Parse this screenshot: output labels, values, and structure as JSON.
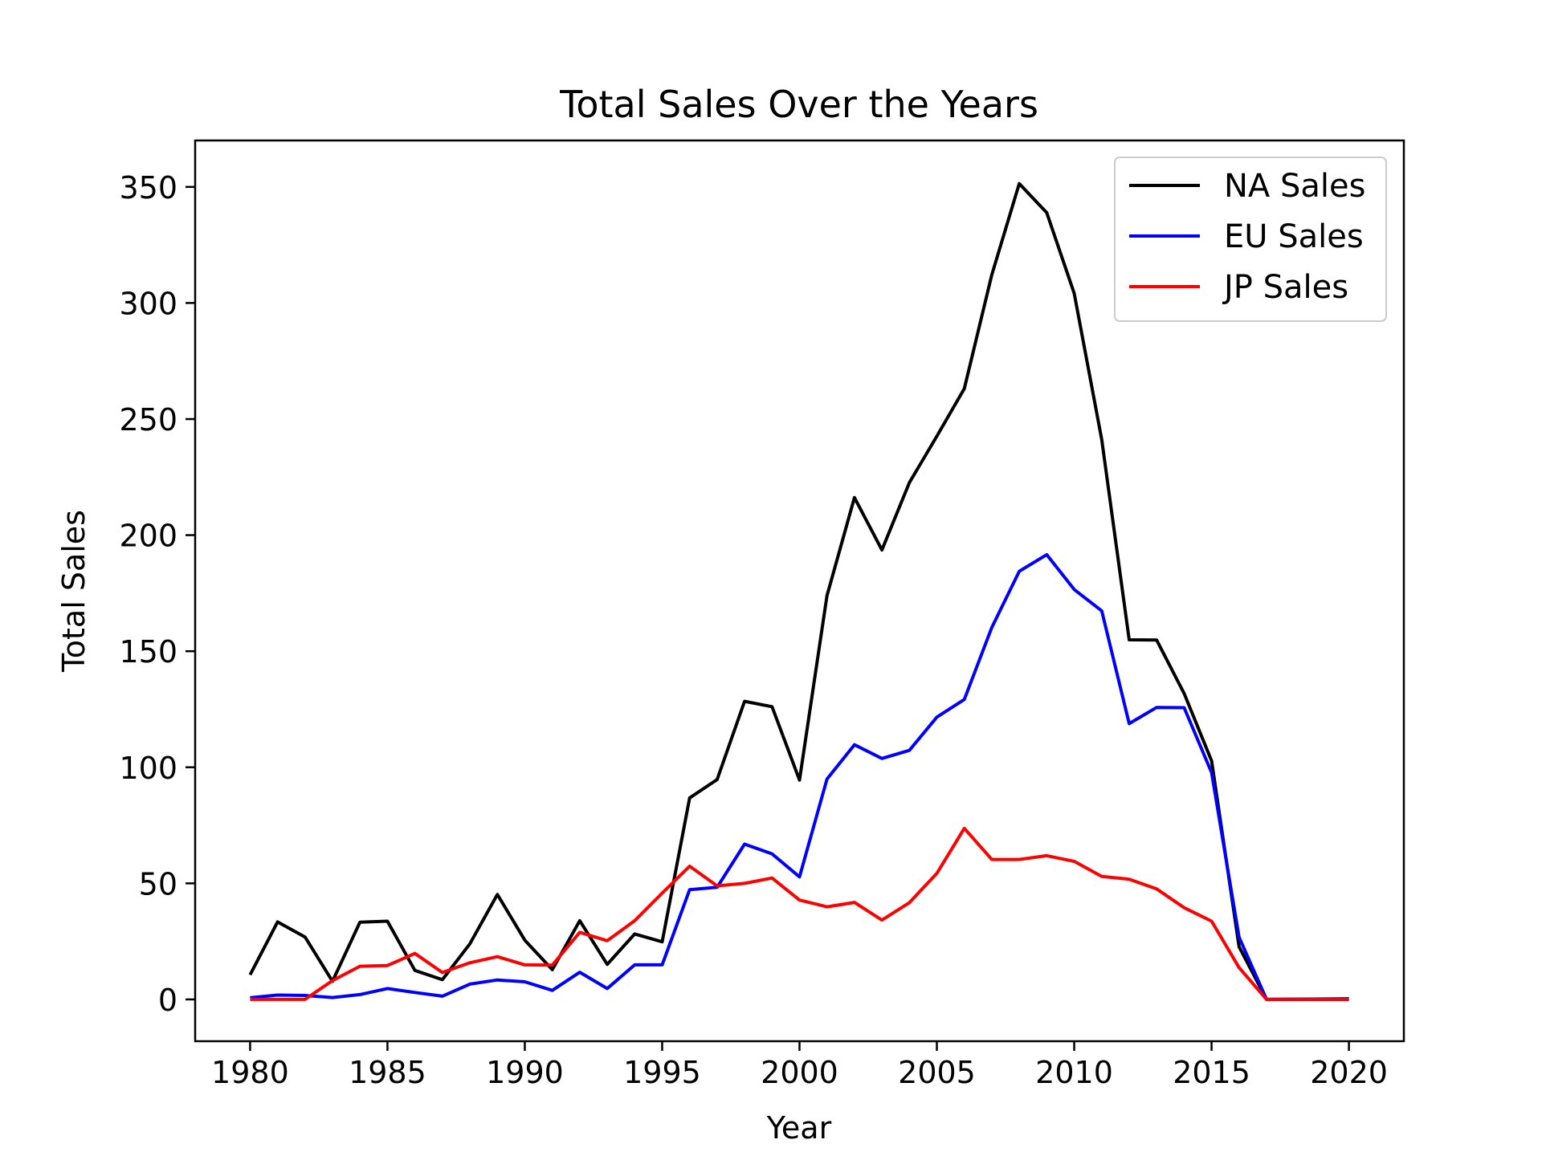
{
  "chart_data": {
    "type": "line",
    "title": "Total Sales Over the Years",
    "xlabel": "Year",
    "ylabel": "Total Sales",
    "xlim": [
      1978,
      2022
    ],
    "ylim": [
      -18,
      370
    ],
    "xticks": [
      "1980",
      "1985",
      "1990",
      "1995",
      "2000",
      "2005",
      "2010",
      "2015",
      "2020"
    ],
    "yticks": [
      "0",
      "50",
      "100",
      "150",
      "200",
      "250",
      "300",
      "350"
    ],
    "grid": false,
    "legend": "top-right",
    "x": [
      1980,
      1981,
      1982,
      1983,
      1984,
      1985,
      1986,
      1987,
      1988,
      1989,
      1990,
      1991,
      1992,
      1993,
      1994,
      1995,
      1996,
      1997,
      1998,
      1999,
      2000,
      2001,
      2002,
      2003,
      2004,
      2005,
      2006,
      2007,
      2008,
      2009,
      2010,
      2011,
      2012,
      2013,
      2014,
      2015,
      2016,
      2017,
      2020
    ],
    "series": [
      {
        "name": "NA Sales",
        "color": "#000000",
        "values": [
          10.6,
          33.4,
          26.9,
          7.8,
          33.3,
          33.7,
          12.5,
          8.5,
          23.9,
          45.2,
          25.5,
          12.8,
          33.9,
          15.1,
          28.2,
          24.8,
          86.8,
          94.7,
          128.4,
          126.1,
          94.5,
          173.9,
          216.2,
          193.6,
          222.6,
          242.6,
          263.1,
          312.1,
          351.4,
          338.9,
          304.2,
          241.2,
          154.9,
          154.8,
          131.8,
          102.8,
          22.7,
          0.0,
          0.3
        ]
      },
      {
        "name": "EU Sales",
        "color": "#0000ff",
        "values": [
          0.7,
          1.9,
          1.7,
          0.8,
          2.1,
          4.7,
          3.0,
          1.4,
          6.6,
          8.4,
          7.6,
          3.9,
          11.7,
          4.7,
          14.9,
          14.9,
          47.3,
          48.3,
          66.9,
          62.7,
          52.8,
          94.9,
          109.7,
          103.8,
          107.3,
          121.6,
          129.2,
          160.2,
          184.4,
          191.6,
          176.6,
          167.4,
          118.8,
          125.8,
          125.7,
          97.7,
          26.8,
          0.0,
          0.0
        ]
      },
      {
        "name": "JP Sales",
        "color": "#ff0000",
        "values": [
          0.0,
          0.0,
          0.0,
          8.1,
          14.3,
          14.6,
          19.8,
          11.6,
          15.8,
          18.4,
          14.9,
          14.8,
          28.9,
          25.3,
          33.9,
          45.8,
          57.4,
          48.9,
          50.0,
          52.3,
          42.8,
          39.9,
          41.8,
          34.2,
          41.7,
          54.3,
          73.7,
          60.3,
          60.3,
          61.9,
          59.5,
          53.0,
          51.8,
          47.6,
          39.5,
          33.7,
          13.7,
          0.0,
          0.0
        ]
      }
    ]
  }
}
